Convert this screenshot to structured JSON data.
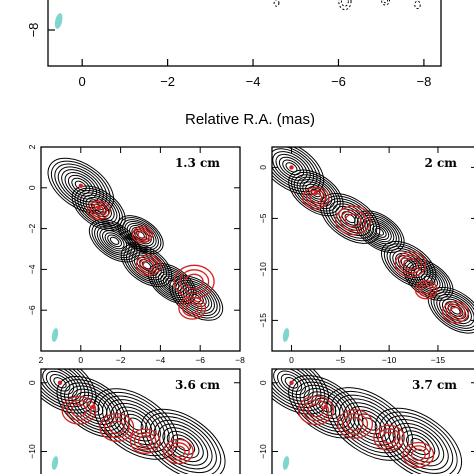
{
  "figure": {
    "xlabel": "Relative R.A. (mas)",
    "colors": {
      "total_intensity": "#000000",
      "polarized": "#d42020",
      "beam": "#7fd6cf"
    }
  },
  "chart_data": [
    {
      "id": "top",
      "type": "contour",
      "xlim": [
        0.8,
        -8.4
      ],
      "ylim": [
        -9,
        -7
      ],
      "x_ticks": [
        "0",
        "−2",
        "−4",
        "−6",
        "−8"
      ],
      "x_tick_values": [
        0,
        -2,
        -4,
        -6,
        -8
      ],
      "y_ticks": [
        "−8"
      ],
      "y_tick_values": [
        -8
      ],
      "xlabel": "Relative R.A. (mas)",
      "band": "",
      "series": [],
      "components": [
        {
          "x": -4.55,
          "y": -7.25,
          "r": 0.06
        },
        {
          "x": -6.15,
          "y": -7.2,
          "r": 0.18
        },
        {
          "x": -7.1,
          "y": -7.15,
          "r": 0.12
        },
        {
          "x": -7.85,
          "y": -7.3,
          "r": 0.08
        }
      ]
    },
    {
      "id": "p13",
      "type": "contour",
      "band": "1.3 cm",
      "xlim": [
        2,
        -8
      ],
      "ylim": [
        -8,
        2
      ],
      "x_ticks": [
        "2",
        "0",
        "−2",
        "−4",
        "−6",
        "−8"
      ],
      "x_tick_values": [
        2,
        0,
        -2,
        -4,
        -6,
        -8
      ],
      "y_ticks": [
        "2",
        "0",
        "−2",
        "−4",
        "−6"
      ],
      "y_tick_values": [
        2,
        0,
        -2,
        -4,
        -6
      ],
      "components": [
        {
          "x": 0.0,
          "y": 0.1,
          "s": 1.3
        },
        {
          "x": -0.9,
          "y": -1.0,
          "s": 1.05
        },
        {
          "x": -1.7,
          "y": -2.6,
          "s": 1.0
        },
        {
          "x": -3.0,
          "y": -2.3,
          "s": 0.9
        },
        {
          "x": -3.3,
          "y": -3.8,
          "s": 1.0
        },
        {
          "x": -4.6,
          "y": -4.7,
          "s": 0.95
        },
        {
          "x": -5.8,
          "y": -5.4,
          "s": 1.05
        }
      ],
      "polarization": [
        {
          "x": -0.9,
          "y": -1.1,
          "r": 0.5
        },
        {
          "x": -3.1,
          "y": -2.3,
          "r": 0.45
        },
        {
          "x": -3.4,
          "y": -3.8,
          "r": 0.55
        },
        {
          "x": -5.7,
          "y": -4.6,
          "r": 0.9
        },
        {
          "x": -5.6,
          "y": -5.9,
          "r": 0.6
        }
      ]
    },
    {
      "id": "p2",
      "type": "contour",
      "band": "2 cm",
      "xlim": [
        2,
        -19
      ],
      "ylim": [
        -18,
        2
      ],
      "x_ticks": [
        "0",
        "−5",
        "−10",
        "−15"
      ],
      "x_tick_values": [
        0,
        -5,
        -10,
        -15
      ],
      "y_ticks": [
        "0",
        "−5",
        "−10",
        "−15"
      ],
      "y_tick_values": [
        0,
        -5,
        -10,
        -15
      ],
      "components": [
        {
          "x": 0.0,
          "y": 0.0,
          "s": 2.6
        },
        {
          "x": -2.5,
          "y": -2.5,
          "s": 2.2
        },
        {
          "x": -6.0,
          "y": -5.0,
          "s": 2.4
        },
        {
          "x": -9.0,
          "y": -6.3,
          "s": 2.0
        },
        {
          "x": -12.0,
          "y": -9.5,
          "s": 2.2
        },
        {
          "x": -14.0,
          "y": -11.0,
          "s": 2.0
        },
        {
          "x": -16.8,
          "y": -14.0,
          "s": 2.2
        }
      ],
      "polarization": [
        {
          "x": -2.5,
          "y": -3.0,
          "r": 1.2
        },
        {
          "x": -6.3,
          "y": -5.2,
          "r": 1.6
        },
        {
          "x": -12.2,
          "y": -9.5,
          "r": 1.4
        },
        {
          "x": -13.8,
          "y": -12.0,
          "r": 1.0
        },
        {
          "x": -16.8,
          "y": -14.2,
          "r": 1.2
        }
      ]
    },
    {
      "id": "p36",
      "type": "contour",
      "band": "3.6 cm",
      "xlim": [
        2,
        -19
      ],
      "ylim": [
        -14,
        2
      ],
      "y_ticks": [
        "0",
        "−10"
      ],
      "y_tick_values": [
        0,
        -10
      ],
      "components": [
        {
          "x": 0.0,
          "y": 0.0,
          "s": 3.0
        },
        {
          "x": -3.5,
          "y": -3.5,
          "s": 3.0
        },
        {
          "x": -8.0,
          "y": -6.0,
          "s": 3.5
        },
        {
          "x": -13.0,
          "y": -9.0,
          "s": 3.5
        }
      ],
      "polarization": [
        {
          "x": -2.0,
          "y": -4.0,
          "r": 1.6
        },
        {
          "x": -6.0,
          "y": -6.5,
          "r": 1.6
        },
        {
          "x": -9.0,
          "y": -8.5,
          "r": 1.4
        },
        {
          "x": -12.5,
          "y": -10.0,
          "r": 1.4
        }
      ]
    },
    {
      "id": "p37",
      "type": "contour",
      "band": "3.7 cm",
      "xlim": [
        2,
        -19
      ],
      "ylim": [
        -14,
        2
      ],
      "y_ticks": [
        "0",
        "−10"
      ],
      "y_tick_values": [
        0,
        -10
      ],
      "components": [
        {
          "x": 0.0,
          "y": 0.0,
          "s": 3.0
        },
        {
          "x": -3.5,
          "y": -3.5,
          "s": 3.0
        },
        {
          "x": -8.0,
          "y": -6.0,
          "s": 3.5
        },
        {
          "x": -13.0,
          "y": -9.0,
          "s": 3.5
        }
      ],
      "polarization": [
        {
          "x": -2.5,
          "y": -4.0,
          "r": 1.6
        },
        {
          "x": -6.5,
          "y": -6.0,
          "r": 1.6
        },
        {
          "x": -10.0,
          "y": -8.0,
          "r": 1.4
        },
        {
          "x": -13.0,
          "y": -10.5,
          "r": 1.4
        }
      ]
    }
  ]
}
